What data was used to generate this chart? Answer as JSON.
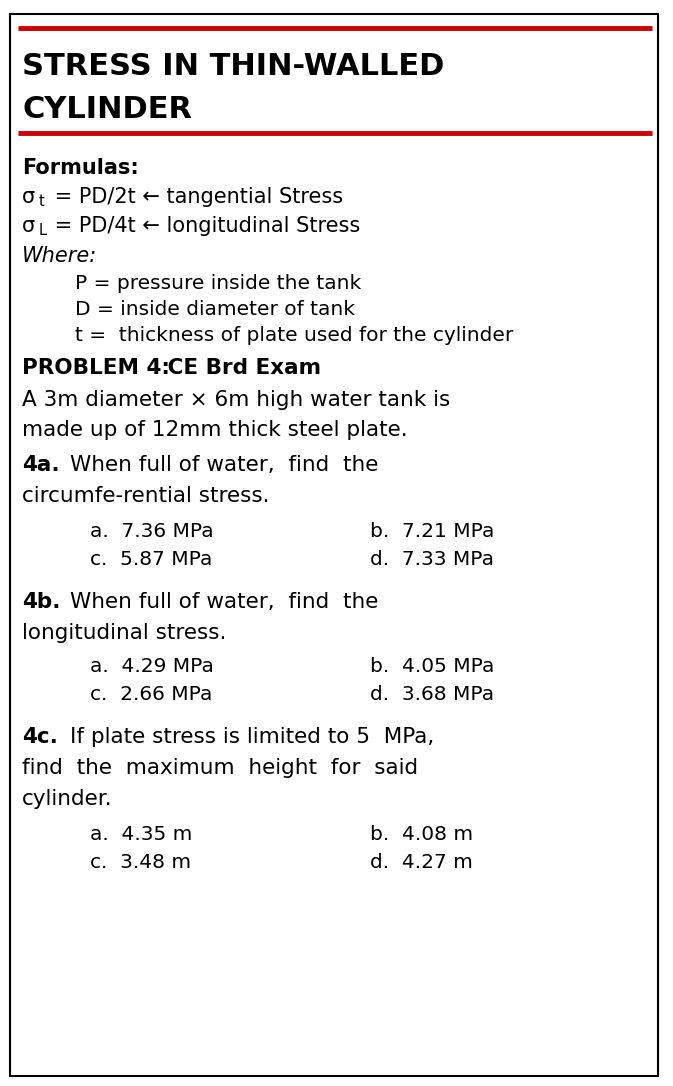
{
  "bg_color": "#ffffff",
  "border_color": "#000000",
  "red_line_color": "#cc0000",
  "title_line1": "STRESS IN THIN-WALLED",
  "title_line2": "CYLINDER",
  "formulas_label": "Formulas:",
  "where_label": "Where:",
  "where_p": "P = pressure inside the tank",
  "where_d": "D = inside diameter of tank",
  "where_t": "t =  thickness of plate used for the cylinder",
  "problem_bold": "PROBLEM 4:",
  "problem_rest": " CE Brd Exam",
  "problem_desc1": "A 3m diameter × 6m high water tank is",
  "problem_desc2": "made up of 12mm thick steel plate.",
  "q4a_bold": "4a.",
  "q4a_text1": "When full of water,  find  the",
  "q4a_text2": "circumfe-rential stress.",
  "q4a_a": "a.  7.36 MPa",
  "q4a_b": "b.  7.21 MPa",
  "q4a_c": "c.  5.87 MPa",
  "q4a_d": "d.  7.33 MPa",
  "q4b_bold": "4b.",
  "q4b_text1": "When full of water,  find  the",
  "q4b_text2": "longitudinal stress.",
  "q4b_a": "a.  4.29 MPa",
  "q4b_b": "b.  4.05 MPa",
  "q4b_c": "c.  2.66 MPa",
  "q4b_d": "d.  3.68 MPa",
  "q4c_bold": "4c.",
  "q4c_text1": "If plate stress is limited to 5  MPa,",
  "q4c_text2": "find  the  maximum  height  for  said",
  "q4c_text3": "cylinder.",
  "q4c_a": "a.  4.35 m",
  "q4c_b": "b.  4.08 m",
  "q4c_c": "c.  3.48 m",
  "q4c_d": "d.  4.27 m",
  "fig_width": 6.73,
  "fig_height": 10.86,
  "dpi": 100
}
